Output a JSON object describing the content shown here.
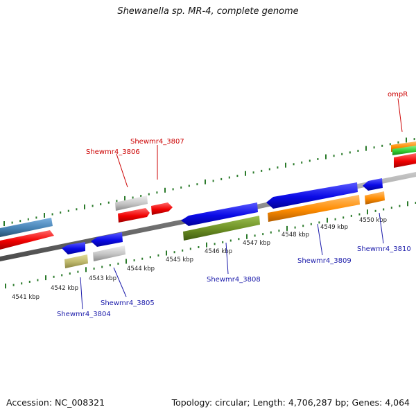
{
  "title": "Shewanella sp. MR-4, complete genome",
  "footer": {
    "accession": "Accession: NC_008321",
    "summary": "Topology: circular; Length: 4,706,287 bp; Genes: 4,064"
  },
  "scale": {
    "labels": [
      "4541 kbp",
      "4542 kbp",
      "4543 kbp",
      "4544 kbp",
      "4545 kbp",
      "4546 kbp",
      "4547 kbp",
      "4548 kbp",
      "4549 kbp",
      "4550 kbp"
    ]
  },
  "gene_labels": {
    "top": [
      "Shewmr4_3806",
      "Shewmr4_3807",
      "ompR"
    ],
    "bottom": [
      "Shewmr4_3804",
      "Shewmr4_3805",
      "Shewmr4_3808",
      "Shewmr4_3809",
      "Shewmr4_3810"
    ]
  },
  "colors": {
    "top_label": "#cc0000",
    "bottom_label": "#1a1aaa",
    "tick": "#2a7a2a",
    "backbone": "#8c8c8c"
  }
}
